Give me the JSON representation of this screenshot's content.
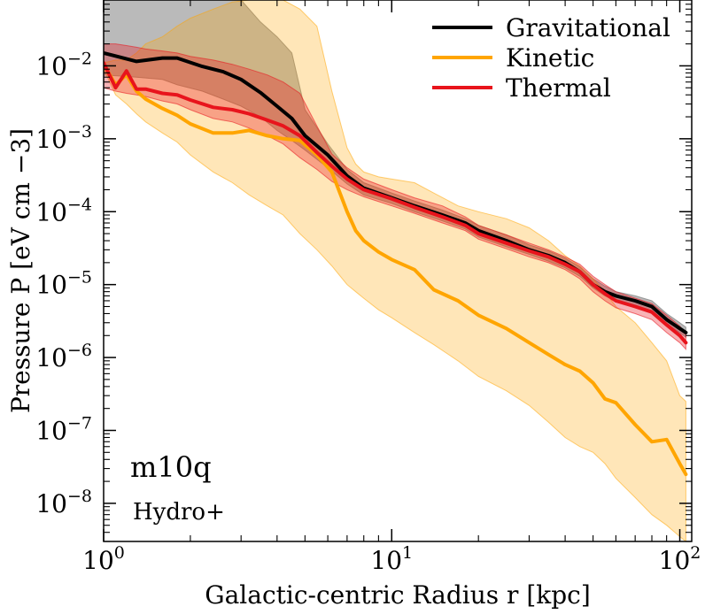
{
  "chart_data": {
    "type": "line",
    "xscale": "log",
    "yscale": "log",
    "xlim": [
      1,
      110
    ],
    "ylim": [
      3e-09,
      0.08
    ],
    "xlabel": "Galactic-centric Radius r [kpc]",
    "ylabel": "Pressure  P  [eV cm −3]",
    "xticks": [
      {
        "value": 1,
        "label": "10",
        "exp": "0"
      },
      {
        "value": 10,
        "label": "10",
        "exp": "1"
      },
      {
        "value": 100,
        "label": "10",
        "exp": "2"
      }
    ],
    "yticks": [
      {
        "value": 1e-08,
        "label": "10",
        "exp": "−8"
      },
      {
        "value": 1e-07,
        "label": "10",
        "exp": "−7"
      },
      {
        "value": 1e-06,
        "label": "10",
        "exp": "−6"
      },
      {
        "value": 1e-05,
        "label": "10",
        "exp": "−5"
      },
      {
        "value": 0.0001,
        "label": "10",
        "exp": "−4"
      },
      {
        "value": 0.001,
        "label": "10",
        "exp": "−3"
      },
      {
        "value": 0.01,
        "label": "10",
        "exp": "−2"
      }
    ],
    "annotations": [
      {
        "text": "m10q",
        "style": "big"
      },
      {
        "text": "Hydro+",
        "style": "small"
      }
    ],
    "legend_position": "top-right",
    "series": [
      {
        "name": "Gravitational",
        "color": "#000000",
        "band_color": "#8c8c8c",
        "band_opacity": 0.6,
        "x": [
          1.0,
          1.3,
          1.6,
          1.8,
          2.2,
          2.6,
          3.0,
          3.5,
          4.0,
          4.5,
          5.0,
          6.0,
          7.0,
          8.0,
          10.0,
          12.0,
          15.0,
          18.0,
          20.0,
          25.0,
          30.0,
          35.0,
          40.0,
          45.0,
          50.0,
          55.0,
          60.0,
          70.0,
          80.0,
          90.0,
          100.0,
          105.0
        ],
        "y": [
          0.015,
          0.0115,
          0.0128,
          0.0128,
          0.0098,
          0.0083,
          0.0065,
          0.0043,
          0.0028,
          0.0019,
          0.0011,
          0.0006,
          0.00031,
          0.00021,
          0.000155,
          0.00012,
          9e-05,
          7e-05,
          5.5e-05,
          4e-05,
          3e-05,
          2.5e-05,
          2e-05,
          1.5e-05,
          1e-05,
          8e-06,
          7e-06,
          6e-06,
          5e-06,
          3.3e-06,
          2.5e-06,
          2.2e-06
        ],
        "lower": [
          0.0075,
          0.007,
          0.0065,
          0.0055,
          0.0045,
          0.0035,
          0.0028,
          0.002,
          0.0013,
          0.00095,
          0.0007,
          0.0004,
          0.00024,
          0.00017,
          0.00013,
          0.0001,
          7.5e-05,
          5.8e-05,
          4.5e-05,
          3.3e-05,
          2.6e-05,
          2.1e-05,
          1.7e-05,
          1.3e-05,
          9e-06,
          7e-06,
          6e-06,
          5e-06,
          4.2e-06,
          2.9e-06,
          2.2e-06,
          1.9e-06
        ],
        "upper": [
          0.08,
          0.08,
          0.08,
          0.08,
          0.08,
          0.08,
          0.08,
          0.04,
          0.025,
          0.015,
          0.0025,
          0.00085,
          0.00038,
          0.00025,
          0.00018,
          0.00014,
          0.000105,
          8e-05,
          6.5e-05,
          4.8e-05,
          3.5e-05,
          2.9e-05,
          2.3e-05,
          1.75e-05,
          1.2e-05,
          9.5e-06,
          8e-06,
          7e-06,
          6e-06,
          4e-06,
          3e-06,
          2.6e-06
        ]
      },
      {
        "name": "Kinetic",
        "color": "#ffa500",
        "band_color": "#ffa500",
        "band_opacity": 0.28,
        "x": [
          1.0,
          1.1,
          1.2,
          1.3,
          1.4,
          1.6,
          1.8,
          2.0,
          2.4,
          2.8,
          3.2,
          3.7,
          4.2,
          4.8,
          5.5,
          6.2,
          7.0,
          7.5,
          8.0,
          9.0,
          10.0,
          12.0,
          14.0,
          17.0,
          20.0,
          25.0,
          30.0,
          35.0,
          40.0,
          45.0,
          50.0,
          55.0,
          60.0,
          70.0,
          80.0,
          90.0,
          100.0,
          105.0
        ],
        "y": [
          0.0105,
          0.0055,
          0.0075,
          0.0045,
          0.0035,
          0.0026,
          0.0021,
          0.0016,
          0.0012,
          0.0012,
          0.0013,
          0.0011,
          0.001,
          0.00095,
          0.0006,
          0.00035,
          0.0001,
          5.5e-05,
          4e-05,
          2.8e-05,
          2.2e-05,
          1.6e-05,
          8.5e-06,
          6e-06,
          3.8e-06,
          2.5e-06,
          1.6e-06,
          1.1e-06,
          8e-07,
          6.5e-07,
          4.5e-07,
          2.7e-07,
          2.4e-07,
          1.2e-07,
          7e-08,
          7.5e-08,
          3.5e-08,
          2.5e-08
        ],
        "lower": [
          0.009,
          0.004,
          0.003,
          0.0022,
          0.0017,
          0.0012,
          0.0009,
          0.0006,
          0.00035,
          0.00025,
          0.00017,
          0.00012,
          9e-05,
          5e-05,
          3e-05,
          1.8e-05,
          1e-05,
          8e-06,
          6.5e-06,
          4.5e-06,
          3.5e-06,
          2.2e-06,
          1.5e-06,
          9e-07,
          5.5e-07,
          3.5e-07,
          2.2e-07,
          1.3e-07,
          8e-08,
          6e-08,
          5e-08,
          3.5e-08,
          2.2e-08,
          1.2e-08,
          7e-09,
          5e-09,
          3.5e-09,
          3e-09
        ],
        "upper": [
          0.011,
          0.012,
          0.012,
          0.015,
          0.02,
          0.025,
          0.035,
          0.045,
          0.06,
          0.075,
          0.08,
          0.08,
          0.08,
          0.06,
          0.035,
          0.0045,
          0.00075,
          0.00045,
          0.00035,
          0.0003,
          0.00028,
          0.00025,
          0.00018,
          0.00012,
          0.0001,
          8e-05,
          6e-05,
          4e-05,
          2.5e-05,
          1.8e-05,
          1.2e-05,
          8e-06,
          5e-06,
          3e-06,
          1.6e-06,
          9e-07,
          3e-07,
          2.5e-07
        ]
      },
      {
        "name": "Thermal",
        "color": "#e8141c",
        "band_color": "#e8141c",
        "band_opacity": 0.32,
        "x": [
          1.0,
          1.1,
          1.2,
          1.3,
          1.4,
          1.6,
          1.8,
          2.0,
          2.4,
          2.8,
          3.2,
          3.7,
          4.2,
          4.8,
          5.5,
          6.2,
          7.0,
          8.0,
          10.0,
          12.0,
          15.0,
          18.0,
          20.0,
          25.0,
          30.0,
          35.0,
          40.0,
          45.0,
          50.0,
          55.0,
          60.0,
          70.0,
          80.0,
          90.0,
          100.0,
          105.0
        ],
        "y": [
          0.011,
          0.005,
          0.0085,
          0.0048,
          0.0048,
          0.0042,
          0.004,
          0.0034,
          0.0027,
          0.0025,
          0.0022,
          0.0018,
          0.0015,
          0.0011,
          0.00065,
          0.00042,
          0.00028,
          0.0002,
          0.00015,
          0.000115,
          8.5e-05,
          6.5e-05,
          5e-05,
          3.7e-05,
          2.9e-05,
          2.4e-05,
          1.9e-05,
          1.5e-05,
          1e-05,
          7.5e-06,
          6e-06,
          5e-06,
          4.2e-06,
          2.8e-06,
          2e-06,
          1.6e-06
        ],
        "lower": [
          0.005,
          0.0045,
          0.0042,
          0.004,
          0.0038,
          0.0033,
          0.003,
          0.0025,
          0.0019,
          0.0017,
          0.0014,
          0.0011,
          0.00085,
          0.00055,
          0.00038,
          0.00026,
          0.0002,
          0.00016,
          0.00012,
          9.5e-05,
          7e-05,
          5.5e-05,
          4.2e-05,
          3.1e-05,
          2.4e-05,
          2e-05,
          1.6e-05,
          1.2e-05,
          8e-06,
          6e-06,
          4.8e-06,
          4e-06,
          3.3e-06,
          2.2e-06,
          1.6e-06,
          1.3e-06
        ],
        "upper": [
          0.02,
          0.02,
          0.019,
          0.018,
          0.017,
          0.016,
          0.015,
          0.0135,
          0.012,
          0.0105,
          0.009,
          0.0075,
          0.006,
          0.0042,
          0.0015,
          0.00062,
          0.0004,
          0.00028,
          0.0002,
          0.000155,
          0.00012,
          8.5e-05,
          6.5e-05,
          4.8e-05,
          3.7e-05,
          3e-05,
          2.4e-05,
          1.9e-05,
          1.3e-05,
          1e-05,
          8e-06,
          6.5e-06,
          5.5e-06,
          3.8e-06,
          2.7e-06,
          2.1e-06
        ]
      }
    ]
  }
}
